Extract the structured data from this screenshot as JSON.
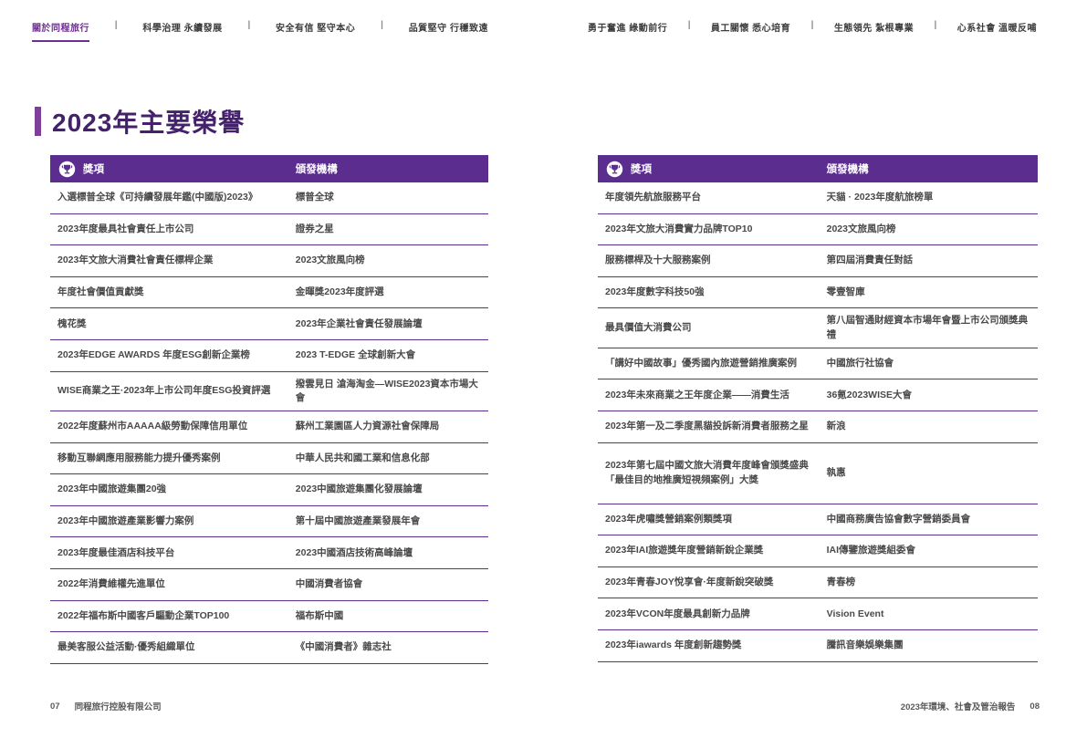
{
  "nav": {
    "separator": "|",
    "left_items": [
      {
        "label": "關於同程旅行",
        "active": true
      },
      {
        "label": "科學治理 永續發展",
        "active": false
      },
      {
        "label": "安全有信 堅守本心",
        "active": false
      },
      {
        "label": "品質堅守 行穩致遠",
        "active": false
      }
    ],
    "right_items": [
      {
        "label": "勇于奮進 綠動前行",
        "active": false
      },
      {
        "label": "員工關懷 悉心培育",
        "active": false
      },
      {
        "label": "生態領先 紮根專業",
        "active": false
      },
      {
        "label": "心系社會 溫暖反哺",
        "active": false
      }
    ]
  },
  "title": "2023年主要榮譽",
  "table_header": {
    "award": "獎項",
    "issuer": "頒發機構",
    "icon": "trophy-icon"
  },
  "left_table": {
    "rows": [
      {
        "award": "入選標普全球《可持續發展年鑑(中國版)2023》",
        "issuer": "標普全球"
      },
      {
        "award": "2023年度最具社會責任上市公司",
        "issuer": "證券之星"
      },
      {
        "award": "2023年文旅大消費社會責任標桿企業",
        "issuer": "2023文旅風向榜"
      },
      {
        "award": "年度社會價值貢獻獎",
        "issuer": "金暉獎2023年度評選"
      },
      {
        "award": "槐花獎",
        "issuer": "2023年企業社會責任發展論壇"
      },
      {
        "award": "2023年EDGE AWARDS 年度ESG創新企業榜",
        "issuer": "2023 T-EDGE 全球創新大會"
      },
      {
        "award": "WISE商業之王·2023年上市公司年度ESG投資評選",
        "issuer": "撥雲見日 滄海淘金—WISE2023資本市場大會"
      },
      {
        "award": "2022年度蘇州市AAAAA級勞動保障信用單位",
        "issuer": "蘇州工業園區人力資源社會保障局"
      },
      {
        "award": "移動互聯網應用服務能力提升優秀案例",
        "issuer": "中華人民共和國工業和信息化部"
      },
      {
        "award": "2023年中國旅遊集團20強",
        "issuer": "2023中國旅遊集團化發展論壇"
      },
      {
        "award": "2023年中國旅遊產業影響力案例",
        "issuer": "第十屆中國旅遊產業發展年會"
      },
      {
        "award": "2023年度最佳酒店科技平台",
        "issuer": "2023中國酒店技術高峰論壇"
      },
      {
        "award": "2022年消費維權先進單位",
        "issuer": "中國消費者協會"
      },
      {
        "award": "2022年福布斯中國客戶驅動企業TOP100",
        "issuer": "福布斯中國"
      },
      {
        "award": "最美客服公益活動·優秀組織單位",
        "issuer": "《中國消費者》雜志社"
      }
    ]
  },
  "right_table": {
    "rows": [
      {
        "award": "年度領先航旅服務平台",
        "issuer": "天貓 · 2023年度航旅榜單"
      },
      {
        "award": "2023年文旅大消費實力品牌TOP10",
        "issuer": "2023文旅風向榜"
      },
      {
        "award": "服務標桿及十大服務案例",
        "issuer": "第四屆消費責任對話"
      },
      {
        "award": "2023年度數字科技50強",
        "issuer": "零壹智庫"
      },
      {
        "award": "最具價值大消費公司",
        "issuer": "第八屆智通財經資本市場年會暨上市公司頒獎典禮"
      },
      {
        "award": "「講好中國故事」優秀國內旅遊營銷推廣案例",
        "issuer": "中國旅行社協會"
      },
      {
        "award": "2023年未來商業之王年度企業——消費生活",
        "issuer": "36氪2023WISE大會"
      },
      {
        "award": "2023年第一及二季度黑貓投訴新消費者服務之星",
        "issuer": "新浪"
      },
      {
        "award": "2023年第七屆中國文旅大消費年度峰會頒獎盛典\n「最佳目的地推廣短視頻案例」大獎",
        "issuer": "執惠",
        "tall": true
      },
      {
        "award": "2023年虎嘯獎營銷案例類獎項",
        "issuer": "中國商務廣告協會數字營銷委員會"
      },
      {
        "award": "2023年IAI旅遊獎年度營銷新銳企業獎",
        "issuer": "IAI傳鑒旅遊獎組委會"
      },
      {
        "award": "2023年青春JOY悅享會·年度新銳突破獎",
        "issuer": "青春榜"
      },
      {
        "award": "2023年VCON年度最具創新力品牌",
        "issuer": "Vision Event"
      },
      {
        "award": "2023年iawards 年度創新趨勢獎",
        "issuer": "騰訊音樂娛樂集團"
      }
    ]
  },
  "footer": {
    "page_left": "07",
    "company": "同程旅行控股有限公司",
    "report": "2023年環境、社會及管治報告",
    "page_right": "08"
  },
  "colors": {
    "header_purple": "#5b2d8e",
    "accent_purple": "#7d3f98",
    "title_text": "#44226b",
    "row_line": "#5b2d8e",
    "body_text": "#4a4a4a"
  }
}
